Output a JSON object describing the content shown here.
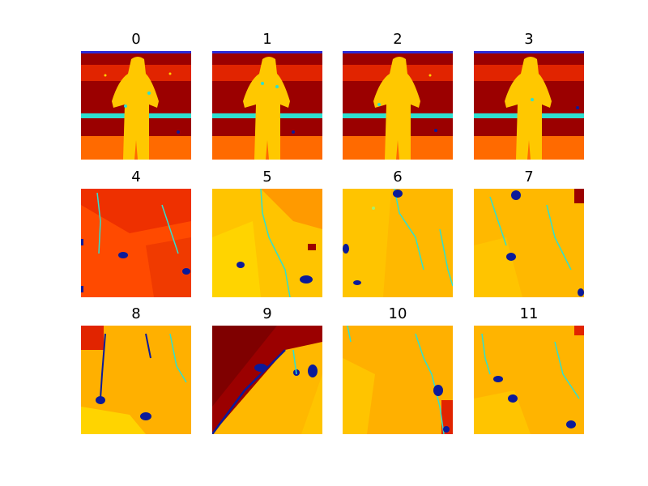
{
  "panels": [
    {
      "label": "0",
      "kind": "person"
    },
    {
      "label": "1",
      "kind": "person"
    },
    {
      "label": "2",
      "kind": "person"
    },
    {
      "label": "3",
      "kind": "person"
    },
    {
      "label": "4",
      "kind": "red-floor"
    },
    {
      "label": "5",
      "kind": "yellow-floor"
    },
    {
      "label": "6",
      "kind": "yellow-floor"
    },
    {
      "label": "7",
      "kind": "yellow-floor"
    },
    {
      "label": "8",
      "kind": "yellow-floor"
    },
    {
      "label": "9",
      "kind": "diagonal-dark"
    },
    {
      "label": "10",
      "kind": "yellow-floor"
    },
    {
      "label": "11",
      "kind": "yellow-floor"
    }
  ],
  "colors": {
    "dark_red": "#9b0000",
    "red": "#e12400",
    "orange_red": "#ff4500",
    "orange": "#ff8c00",
    "amber": "#ffb000",
    "yellow": "#ffd400",
    "cyan": "#2ee0d0",
    "blue": "#0b1a9a",
    "green": "#a9f06a"
  }
}
